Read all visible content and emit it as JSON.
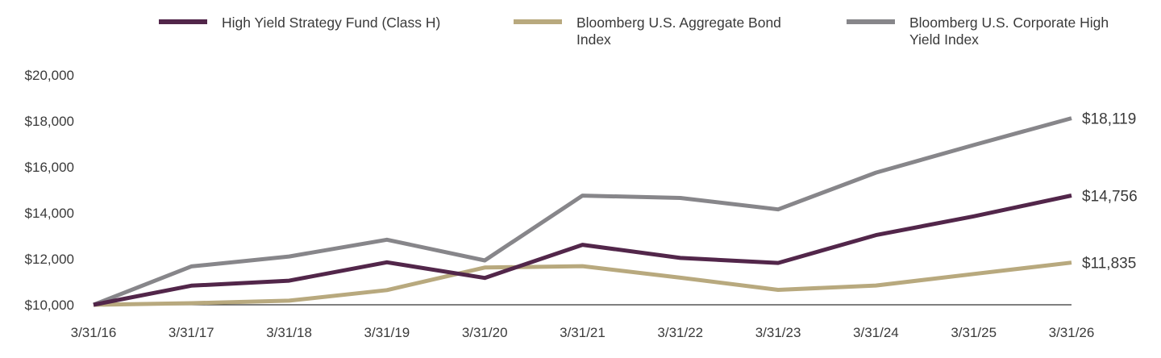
{
  "chart_data": {
    "type": "line",
    "title": "",
    "xlabel": "",
    "ylabel": "",
    "x": [
      "3/31/16",
      "3/31/17",
      "3/31/18",
      "3/31/19",
      "3/31/20",
      "3/31/21",
      "3/31/22",
      "3/31/23",
      "3/31/24",
      "3/31/25",
      "3/31/26"
    ],
    "ylim": [
      10000,
      20000
    ],
    "yticks": [
      "$10,000",
      "$12,000",
      "$14,000",
      "$16,000",
      "$18,000",
      "$20,000"
    ],
    "ytick_values": [
      10000,
      12000,
      14000,
      16000,
      18000,
      20000
    ],
    "grid": false,
    "legend": "top",
    "series": [
      {
        "name": "High Yield Strategy Fund (Class H)",
        "color": "#52264a",
        "values": [
          10000,
          10830,
          11050,
          11850,
          11170,
          12610,
          12040,
          11820,
          13030,
          13850,
          14756
        ],
        "end_label": "$14,756"
      },
      {
        "name": "Bloomberg U.S. Aggregate Bond Index",
        "color": "#b8a97e",
        "values": [
          10000,
          10070,
          10180,
          10640,
          11620,
          11680,
          11180,
          10650,
          10840,
          11340,
          11835
        ],
        "end_label": "$11,835"
      },
      {
        "name": "Bloomberg U.S. Corporate High Yield Index",
        "color": "#87868a",
        "values": [
          10000,
          11670,
          12100,
          12830,
          11930,
          14750,
          14650,
          14150,
          15750,
          16950,
          18119
        ],
        "end_label": "$18,119"
      }
    ]
  }
}
